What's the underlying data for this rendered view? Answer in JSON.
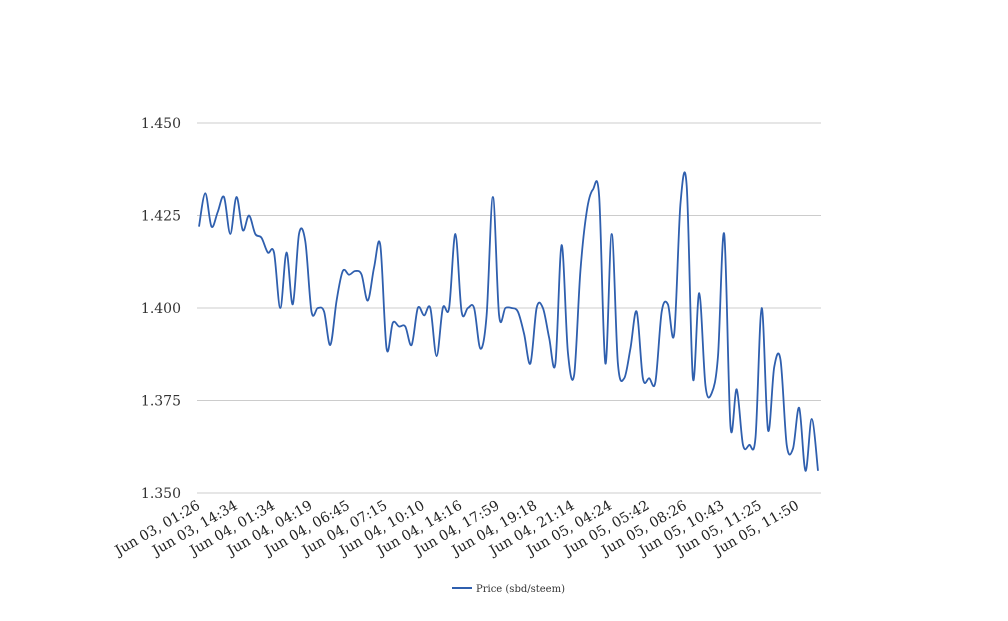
{
  "chart_data": {
    "type": "line",
    "title": "",
    "xlabel": "",
    "ylabel": "",
    "ylim": [
      1.35,
      1.45
    ],
    "y_ticks": [
      "1.350",
      "1.375",
      "1.400",
      "1.425",
      "1.450"
    ],
    "x_tick_labels": [
      "Jun 03, 01:26",
      "Jun 03, 14:34",
      "Jun 04, 01:34",
      "Jun 04, 04:19",
      "Jun 04, 06:45",
      "Jun 04, 07:15",
      "Jun 04, 10:10",
      "Jun 04, 14:16",
      "Jun 04, 17:59",
      "Jun 04, 19:18",
      "Jun 04, 21:14",
      "Jun 05, 04:24",
      "Jun 05, 05:42",
      "Jun 05, 08:26",
      "Jun 05, 10:43",
      "Jun 05, 11:25",
      "Jun 05, 11:50"
    ],
    "grid": true,
    "legend_position": "bottom",
    "series": [
      {
        "name": "Price (sbd/steem)",
        "color": "#2f5fae",
        "values": [
          1.422,
          1.431,
          1.422,
          1.426,
          1.43,
          1.42,
          1.43,
          1.421,
          1.425,
          1.42,
          1.419,
          1.415,
          1.415,
          1.4,
          1.415,
          1.401,
          1.42,
          1.418,
          1.399,
          1.4,
          1.399,
          1.39,
          1.402,
          1.41,
          1.409,
          1.41,
          1.409,
          1.402,
          1.411,
          1.417,
          1.389,
          1.396,
          1.395,
          1.395,
          1.39,
          1.4,
          1.398,
          1.4,
          1.387,
          1.4,
          1.4,
          1.42,
          1.399,
          1.4,
          1.4,
          1.389,
          1.398,
          1.43,
          1.398,
          1.4,
          1.4,
          1.399,
          1.393,
          1.385,
          1.4,
          1.4,
          1.392,
          1.385,
          1.417,
          1.388,
          1.382,
          1.41,
          1.426,
          1.432,
          1.43,
          1.385,
          1.42,
          1.385,
          1.381,
          1.389,
          1.399,
          1.381,
          1.381,
          1.38,
          1.399,
          1.401,
          1.393,
          1.428,
          1.433,
          1.381,
          1.404,
          1.379,
          1.377,
          1.387,
          1.42,
          1.368,
          1.378,
          1.363,
          1.363,
          1.365,
          1.4,
          1.367,
          1.384,
          1.386,
          1.363,
          1.362,
          1.373,
          1.356,
          1.37,
          1.356
        ]
      }
    ]
  }
}
